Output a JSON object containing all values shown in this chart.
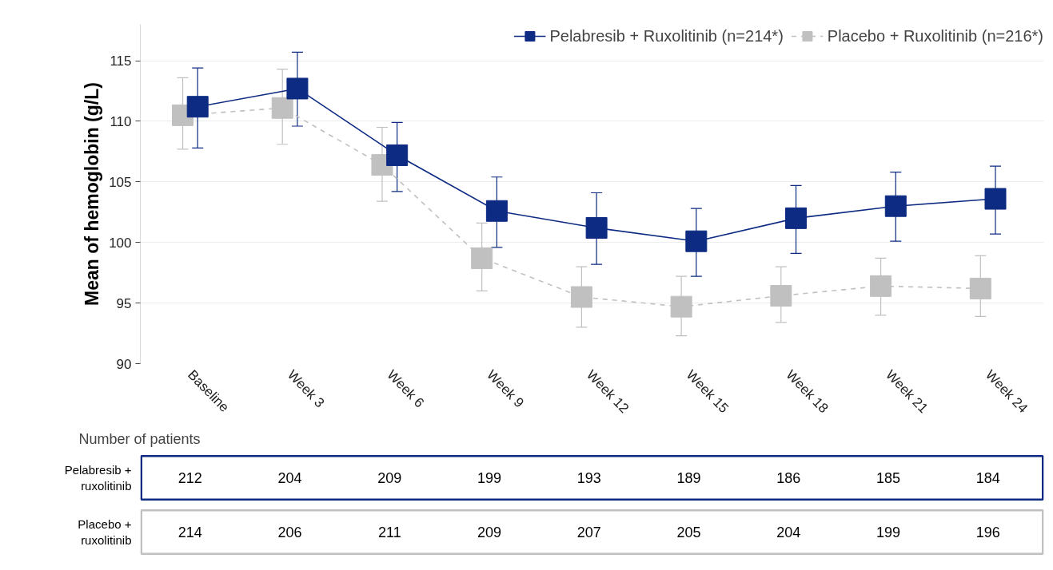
{
  "chart_data": [
    {
      "type": "line",
      "ylabel": "Mean of hemoglobin (g/L)",
      "categories": [
        "Baseline",
        "Week 3",
        "Week 6",
        "Week 9",
        "Week 12",
        "Week 15",
        "Week 18",
        "Week 21",
        "Week 24"
      ],
      "series": [
        {
          "name": "Pelabresib + Ruxolitinib (n=214*)",
          "color": "#0d2b82",
          "line_style": "solid",
          "values": [
            111.2,
            112.7,
            107.2,
            102.6,
            101.2,
            100.1,
            102.0,
            103.0,
            103.6
          ],
          "errors": [
            [
              107.8,
              114.4
            ],
            [
              109.6,
              115.7
            ],
            [
              104.2,
              109.9
            ],
            [
              99.6,
              105.4
            ],
            [
              98.2,
              104.1
            ],
            [
              97.2,
              102.8
            ],
            [
              99.1,
              104.7
            ],
            [
              100.1,
              105.8
            ],
            [
              100.7,
              106.3
            ]
          ]
        },
        {
          "name": "Placebo + Ruxolitinib (n=216*)",
          "color": "#c0c0c0",
          "line_style": "dashed",
          "values": [
            110.5,
            111.1,
            106.4,
            98.7,
            95.5,
            94.7,
            95.6,
            96.4,
            96.2
          ],
          "errors": [
            [
              107.7,
              113.6
            ],
            [
              108.1,
              114.3
            ],
            [
              103.4,
              109.5
            ],
            [
              96.0,
              101.6
            ],
            [
              93.0,
              98.0
            ],
            [
              92.3,
              97.2
            ],
            [
              93.4,
              98.0
            ],
            [
              94.0,
              98.7
            ],
            [
              93.9,
              98.9
            ]
          ]
        }
      ],
      "ylim": [
        90,
        118
      ],
      "yticks": [
        90,
        95,
        100,
        105,
        110,
        115
      ],
      "grid": "y",
      "legend": "top right",
      "marker": "square"
    },
    {
      "type": "heatmap",
      "title": "Number of patients",
      "data_labels": true,
      "categories": [
        null,
        null,
        null,
        null,
        null,
        null,
        null,
        null,
        null
      ],
      "y_categories": [
        "Pelabresib + ruxolitinib",
        "Placebo + ruxolitinib"
      ],
      "cells": [
        [
          212,
          204,
          209,
          199,
          193,
          189,
          186,
          185,
          184
        ],
        [
          214,
          206,
          211,
          209,
          207,
          205,
          204,
          199,
          196
        ]
      ]
    }
  ]
}
